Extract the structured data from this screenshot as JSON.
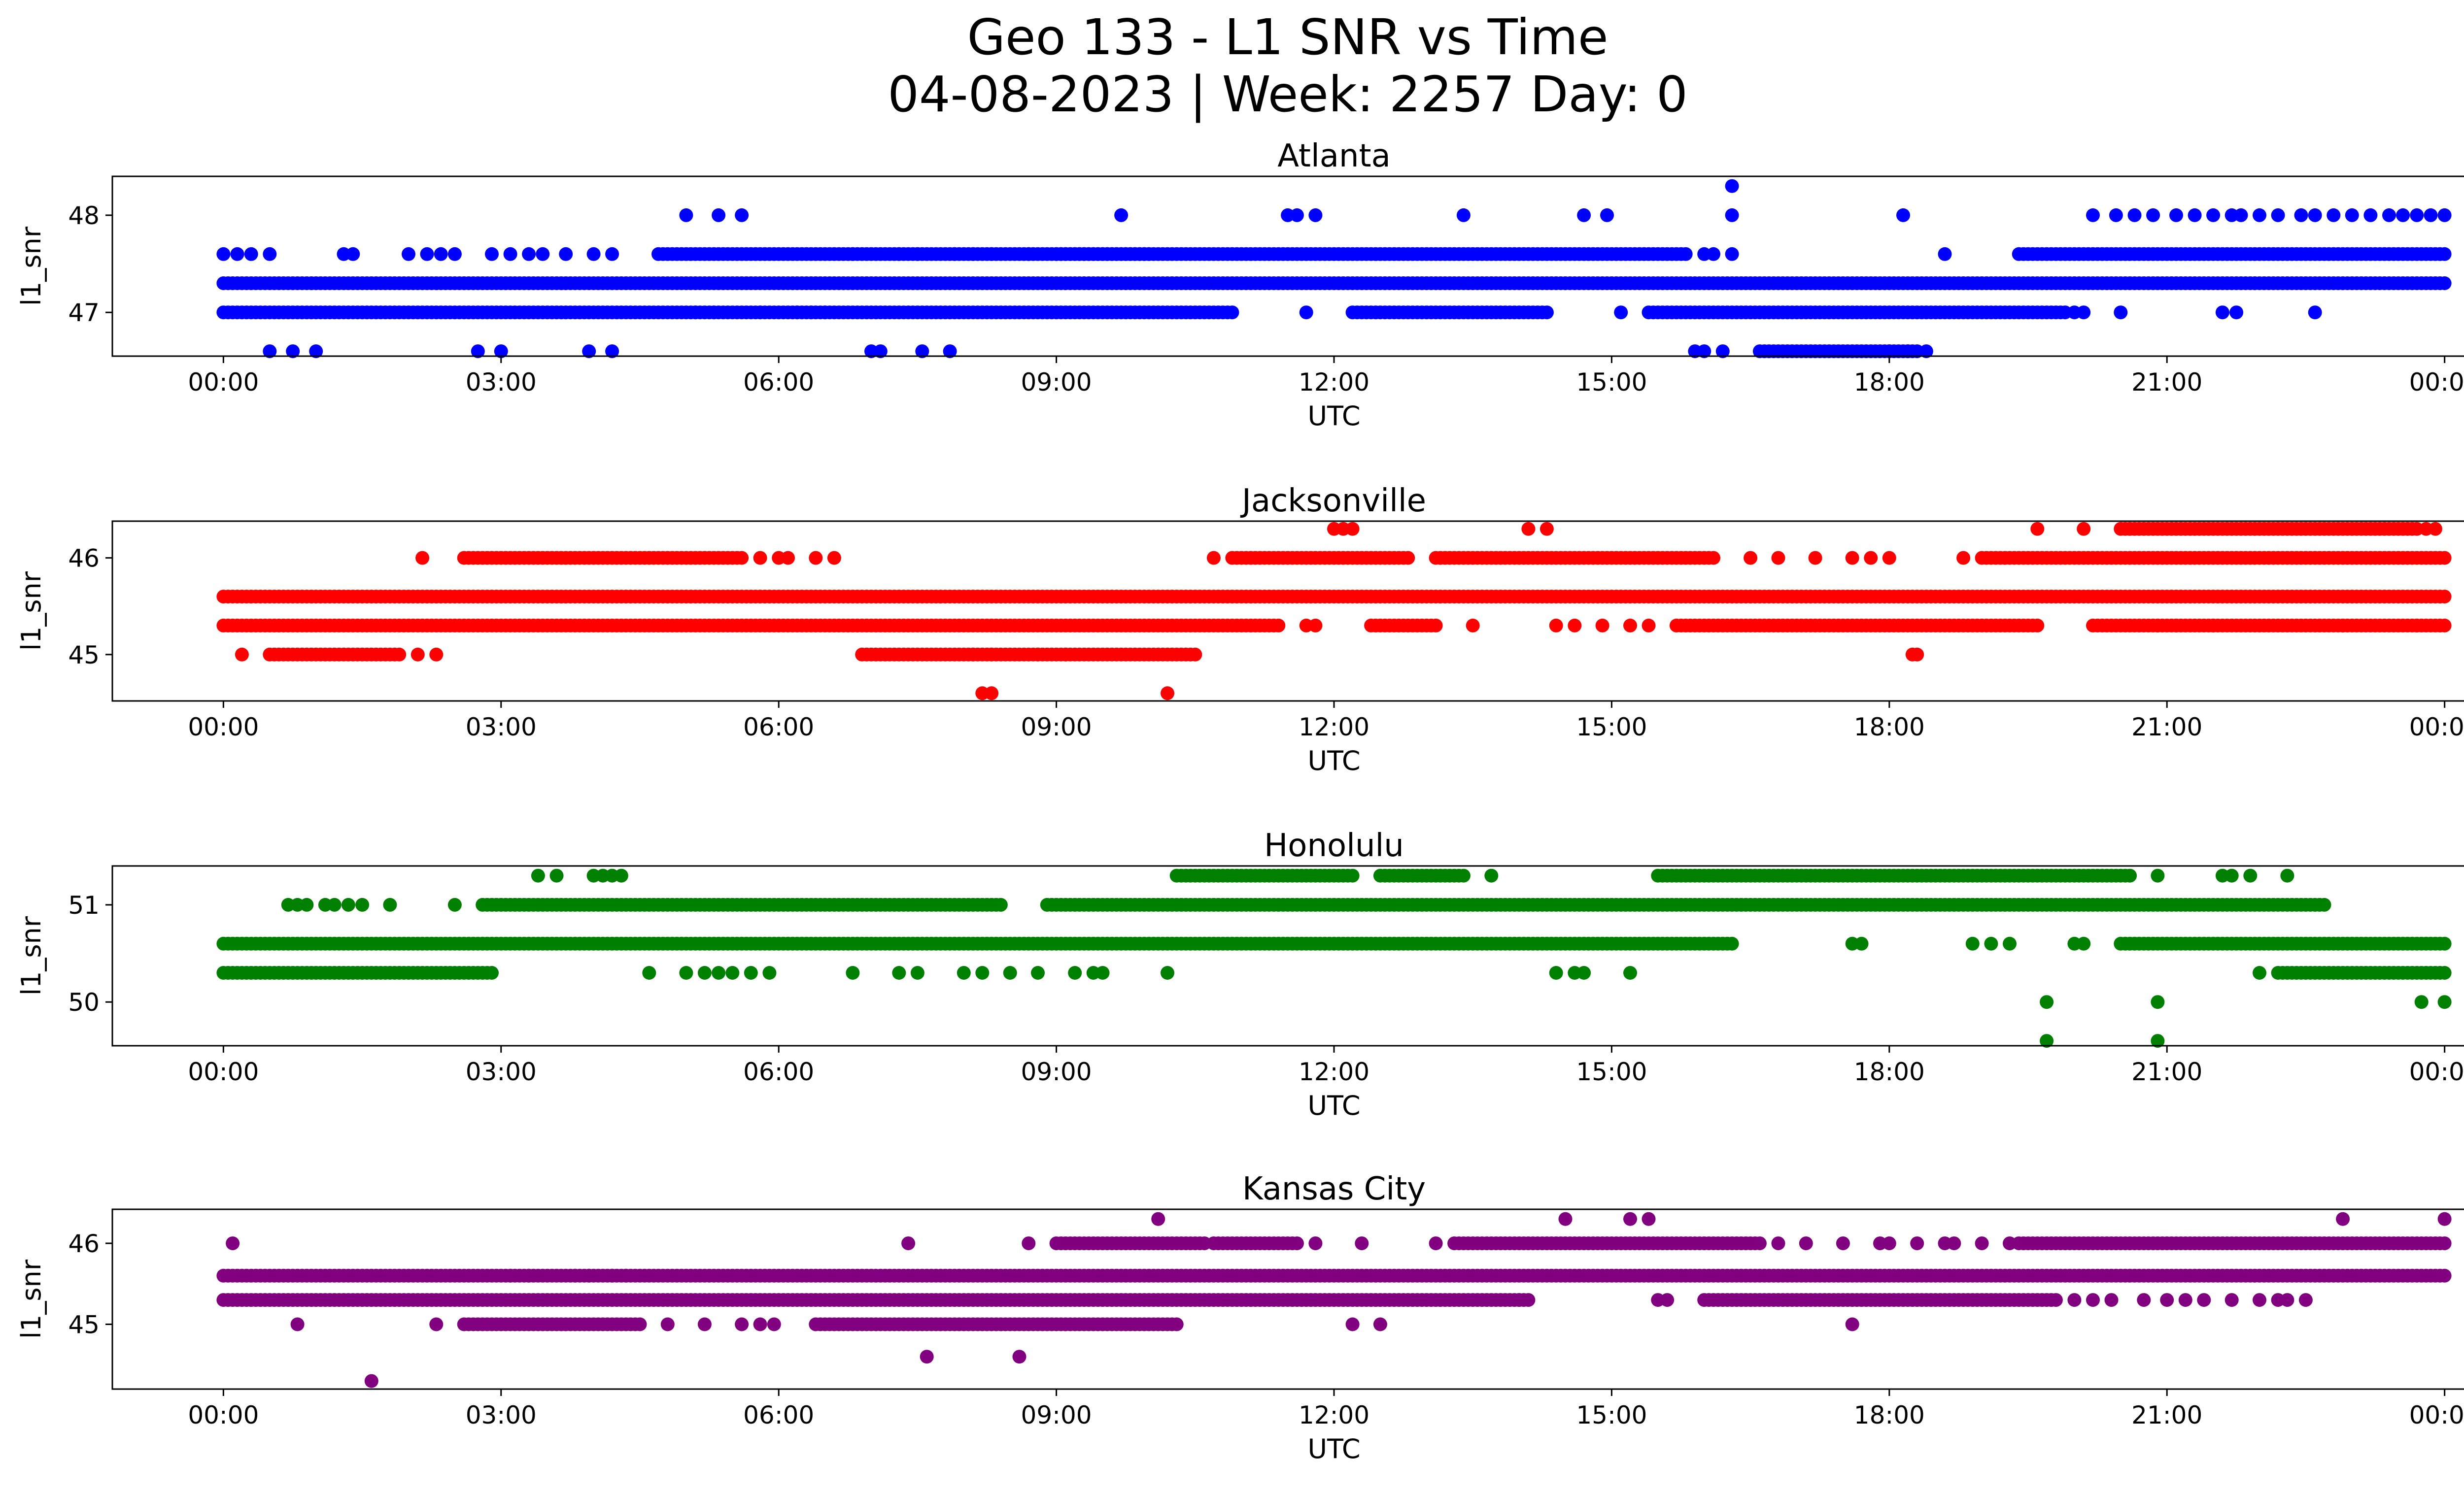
{
  "figure": {
    "title_line1": "Geo 133 - L1 SNR vs Time",
    "title_line2": "04-08-2023 | Week: 2257 Day: 0"
  },
  "chart_data": [
    {
      "type": "scatter",
      "title": "Atlanta",
      "xlabel": "UTC",
      "ylabel": "l1_snr",
      "color": "#0000ff",
      "x_ticks": [
        "00:00",
        "03:00",
        "06:00",
        "09:00",
        "12:00",
        "15:00",
        "18:00",
        "21:00",
        "00:00"
      ],
      "y_ticks": [
        47,
        48
      ],
      "xlim": [
        -1.2,
        25.2
      ],
      "ylim": [
        46.55,
        48.4
      ],
      "series": [
        {
          "x_range": [
            0,
            24
          ],
          "y": 47.3
        },
        {
          "x_range": [
            0,
            10.9
          ],
          "y": 47.0
        },
        {
          "x_range": [
            12.2,
            14.3
          ],
          "y": 47.0
        },
        {
          "x_range": [
            15.4,
            19.9
          ],
          "y": 47.0
        },
        {
          "x_range": [
            6.8,
            10.0
          ],
          "y": 47.6
        },
        {
          "x_range": [
            4.7,
            6.8
          ],
          "y": 47.6
        },
        {
          "x_range": [
            9.0,
            15.8
          ],
          "y": 47.6
        },
        {
          "x_range": [
            19.4,
            24
          ],
          "y": 47.6
        },
        {
          "x_range": [
            16.6,
            18.3
          ],
          "y": 46.6
        }
      ],
      "points": [
        [
          0.0,
          47.6
        ],
        [
          0.15,
          47.6
        ],
        [
          0.3,
          47.6
        ],
        [
          0.5,
          47.6
        ],
        [
          1.3,
          47.6
        ],
        [
          1.4,
          47.6
        ],
        [
          2.0,
          47.6
        ],
        [
          2.2,
          47.6
        ],
        [
          2.35,
          47.6
        ],
        [
          2.5,
          47.6
        ],
        [
          2.9,
          47.6
        ],
        [
          3.1,
          47.6
        ],
        [
          3.3,
          47.6
        ],
        [
          3.45,
          47.6
        ],
        [
          3.7,
          47.6
        ],
        [
          4.0,
          47.6
        ],
        [
          4.2,
          47.6
        ],
        [
          7.3,
          47.6
        ],
        [
          7.5,
          47.6
        ],
        [
          7.9,
          47.6
        ],
        [
          8.1,
          47.6
        ],
        [
          8.3,
          47.6
        ],
        [
          8.7,
          47.6
        ],
        [
          16.0,
          47.6
        ],
        [
          16.1,
          47.6
        ],
        [
          16.3,
          47.6
        ],
        [
          18.6,
          47.6
        ],
        [
          5.0,
          48.0
        ],
        [
          5.35,
          48.0
        ],
        [
          5.6,
          48.0
        ],
        [
          9.7,
          48.0
        ],
        [
          11.5,
          48.0
        ],
        [
          11.6,
          48.0
        ],
        [
          11.8,
          48.0
        ],
        [
          13.4,
          48.0
        ],
        [
          14.7,
          48.0
        ],
        [
          14.95,
          48.0
        ],
        [
          16.3,
          48.0
        ],
        [
          18.15,
          48.0
        ],
        [
          20.2,
          48.0
        ],
        [
          20.45,
          48.0
        ],
        [
          20.65,
          48.0
        ],
        [
          20.85,
          48.0
        ],
        [
          21.1,
          48.0
        ],
        [
          21.3,
          48.0
        ],
        [
          21.5,
          48.0
        ],
        [
          21.7,
          48.0
        ],
        [
          21.8,
          48.0
        ],
        [
          22.0,
          48.0
        ],
        [
          22.2,
          48.0
        ],
        [
          22.45,
          48.0
        ],
        [
          22.6,
          48.0
        ],
        [
          22.8,
          48.0
        ],
        [
          23.0,
          48.0
        ],
        [
          23.2,
          48.0
        ],
        [
          23.4,
          48.0
        ],
        [
          23.55,
          48.0
        ],
        [
          23.7,
          48.0
        ],
        [
          23.85,
          48.0
        ],
        [
          24.0,
          48.0
        ],
        [
          16.3,
          48.3
        ],
        [
          5.1,
          47.0
        ],
        [
          5.3,
          47.0
        ],
        [
          5.8,
          47.0
        ],
        [
          6.2,
          47.0
        ],
        [
          6.35,
          47.0
        ],
        [
          6.5,
          47.0
        ],
        [
          11.7,
          47.0
        ],
        [
          15.1,
          47.0
        ],
        [
          20.0,
          47.0
        ],
        [
          20.1,
          47.0
        ],
        [
          20.5,
          47.0
        ],
        [
          21.6,
          47.0
        ],
        [
          21.75,
          47.0
        ],
        [
          22.6,
          47.0
        ],
        [
          0.5,
          46.6
        ],
        [
          0.75,
          46.6
        ],
        [
          1.0,
          46.6
        ],
        [
          2.75,
          46.6
        ],
        [
          3.0,
          46.6
        ],
        [
          3.95,
          46.6
        ],
        [
          4.2,
          46.6
        ],
        [
          7.0,
          46.6
        ],
        [
          7.1,
          46.6
        ],
        [
          7.55,
          46.6
        ],
        [
          7.85,
          46.6
        ],
        [
          15.9,
          46.6
        ],
        [
          16.0,
          46.6
        ],
        [
          16.2,
          46.6
        ],
        [
          18.0,
          46.6
        ],
        [
          18.2,
          46.6
        ],
        [
          18.4,
          46.6
        ]
      ]
    },
    {
      "type": "scatter",
      "title": "Jacksonville",
      "xlabel": "UTC",
      "ylabel": "l1_snr",
      "color": "#ff0000",
      "x_ticks": [
        "00:00",
        "03:00",
        "06:00",
        "09:00",
        "12:00",
        "15:00",
        "18:00",
        "21:00",
        "00:00"
      ],
      "y_ticks": [
        45,
        46
      ],
      "xlim": [
        -1.2,
        25.2
      ],
      "ylim": [
        44.52,
        46.38
      ],
      "series": [
        {
          "x_range": [
            0,
            24
          ],
          "y": 45.6
        },
        {
          "x_range": [
            0,
            11.4
          ],
          "y": 45.3
        },
        {
          "x_range": [
            12.4,
            13.1
          ],
          "y": 45.3
        },
        {
          "x_range": [
            15.7,
            19.6
          ],
          "y": 45.3
        },
        {
          "x_range": [
            20.2,
            24
          ],
          "y": 45.3
        },
        {
          "x_range": [
            0.5,
            1.9
          ],
          "y": 45.0
        },
        {
          "x_range": [
            6.9,
            10.5
          ],
          "y": 45.0
        },
        {
          "x_range": [
            2.6,
            5.6
          ],
          "y": 46.0
        },
        {
          "x_range": [
            10.9,
            12.8
          ],
          "y": 46.0
        },
        {
          "x_range": [
            13.1,
            16.1
          ],
          "y": 46.0
        },
        {
          "x_range": [
            19.0,
            24
          ],
          "y": 46.0
        },
        {
          "x_range": [
            20.5,
            23.7
          ],
          "y": 46.3
        }
      ],
      "points": [
        [
          0.2,
          45.0
        ],
        [
          2.1,
          45.0
        ],
        [
          2.3,
          45.0
        ],
        [
          8.1,
          45.0
        ],
        [
          8.3,
          45.0
        ],
        [
          8.8,
          45.0
        ],
        [
          9.1,
          45.0
        ],
        [
          18.3,
          45.0
        ],
        [
          18.25,
          45.0
        ],
        [
          8.2,
          44.6
        ],
        [
          8.3,
          44.6
        ],
        [
          10.2,
          44.6
        ],
        [
          2.15,
          46.0
        ],
        [
          5.8,
          46.0
        ],
        [
          6.0,
          46.0
        ],
        [
          6.1,
          46.0
        ],
        [
          6.4,
          46.0
        ],
        [
          6.6,
          46.0
        ],
        [
          10.7,
          46.0
        ],
        [
          16.5,
          46.0
        ],
        [
          16.8,
          46.0
        ],
        [
          17.2,
          46.0
        ],
        [
          17.6,
          46.0
        ],
        [
          17.8,
          46.0
        ],
        [
          18.0,
          46.0
        ],
        [
          18.8,
          46.0
        ],
        [
          12.0,
          46.3
        ],
        [
          12.1,
          46.3
        ],
        [
          12.2,
          46.3
        ],
        [
          14.1,
          46.3
        ],
        [
          14.3,
          46.3
        ],
        [
          19.6,
          46.3
        ],
        [
          20.1,
          46.3
        ],
        [
          23.8,
          46.3
        ],
        [
          23.9,
          46.3
        ],
        [
          11.7,
          45.3
        ],
        [
          11.8,
          45.3
        ],
        [
          13.5,
          45.3
        ],
        [
          14.4,
          45.3
        ],
        [
          14.6,
          45.3
        ],
        [
          14.9,
          45.3
        ],
        [
          15.2,
          45.3
        ],
        [
          15.4,
          45.3
        ],
        [
          20.9,
          45.3
        ],
        [
          21.1,
          45.3
        ],
        [
          21.5,
          45.3
        ],
        [
          22.9,
          45.3
        ],
        [
          23.7,
          45.3
        ]
      ]
    },
    {
      "type": "scatter",
      "title": "Honolulu",
      "xlabel": "UTC",
      "ylabel": "l1_snr",
      "color": "#008000",
      "x_ticks": [
        "00:00",
        "03:00",
        "06:00",
        "09:00",
        "12:00",
        "15:00",
        "18:00",
        "21:00",
        "00:00"
      ],
      "y_ticks": [
        50,
        51
      ],
      "xlim": [
        -1.2,
        25.2
      ],
      "ylim": [
        49.55,
        51.4
      ],
      "series": [
        {
          "x_range": [
            0,
            16.3
          ],
          "y": 50.6
        },
        {
          "x_range": [
            20.5,
            24
          ],
          "y": 50.6
        },
        {
          "x_range": [
            0,
            2.9
          ],
          "y": 50.3
        },
        {
          "x_range": [
            22.2,
            24
          ],
          "y": 50.3
        },
        {
          "x_range": [
            2.8,
            8.4
          ],
          "y": 51.0
        },
        {
          "x_range": [
            8.9,
            22.7
          ],
          "y": 51.0
        },
        {
          "x_range": [
            10.3,
            12.2
          ],
          "y": 51.3
        },
        {
          "x_range": [
            12.5,
            13.4
          ],
          "y": 51.3
        },
        {
          "x_range": [
            15.5,
            20.6
          ],
          "y": 51.3
        }
      ],
      "points": [
        [
          0.7,
          51.0
        ],
        [
          0.8,
          51.0
        ],
        [
          0.9,
          51.0
        ],
        [
          1.1,
          51.0
        ],
        [
          1.2,
          51.0
        ],
        [
          1.35,
          51.0
        ],
        [
          1.5,
          51.0
        ],
        [
          1.8,
          51.0
        ],
        [
          2.5,
          51.0
        ],
        [
          3.4,
          51.3
        ],
        [
          3.6,
          51.3
        ],
        [
          4.0,
          51.3
        ],
        [
          4.1,
          51.3
        ],
        [
          4.2,
          51.3
        ],
        [
          4.3,
          51.3
        ],
        [
          13.7,
          51.3
        ],
        [
          20.9,
          51.3
        ],
        [
          21.6,
          51.3
        ],
        [
          21.7,
          51.3
        ],
        [
          21.9,
          51.3
        ],
        [
          22.3,
          51.3
        ],
        [
          4.6,
          50.3
        ],
        [
          5.0,
          50.3
        ],
        [
          5.2,
          50.3
        ],
        [
          5.35,
          50.3
        ],
        [
          5.5,
          50.3
        ],
        [
          5.7,
          50.3
        ],
        [
          5.9,
          50.3
        ],
        [
          6.8,
          50.3
        ],
        [
          7.3,
          50.3
        ],
        [
          7.5,
          50.3
        ],
        [
          8.0,
          50.3
        ],
        [
          8.2,
          50.3
        ],
        [
          8.5,
          50.3
        ],
        [
          8.8,
          50.3
        ],
        [
          9.2,
          50.3
        ],
        [
          9.4,
          50.3
        ],
        [
          9.5,
          50.3
        ],
        [
          10.2,
          50.3
        ],
        [
          14.4,
          50.3
        ],
        [
          14.6,
          50.3
        ],
        [
          14.7,
          50.3
        ],
        [
          15.2,
          50.3
        ],
        [
          22.0,
          50.3
        ],
        [
          17.6,
          50.6
        ],
        [
          17.7,
          50.6
        ],
        [
          18.9,
          50.6
        ],
        [
          19.1,
          50.6
        ],
        [
          19.3,
          50.6
        ],
        [
          20.0,
          50.6
        ],
        [
          20.1,
          50.6
        ],
        [
          19.7,
          50.0
        ],
        [
          20.9,
          50.0
        ],
        [
          23.75,
          50.0
        ],
        [
          24.0,
          50.0
        ],
        [
          19.7,
          49.6
        ],
        [
          20.9,
          49.6
        ]
      ]
    },
    {
      "type": "scatter",
      "title": "Kansas City",
      "xlabel": "UTC",
      "ylabel": "l1_snr",
      "color": "#800080",
      "x_ticks": [
        "00:00",
        "03:00",
        "06:00",
        "09:00",
        "12:00",
        "15:00",
        "18:00",
        "21:00",
        "00:00"
      ],
      "y_ticks": [
        45,
        46
      ],
      "xlim": [
        -1.2,
        25.2
      ],
      "ylim": [
        44.2,
        46.42
      ],
      "series": [
        {
          "x_range": [
            0,
            24
          ],
          "y": 45.6
        },
        {
          "x_range": [
            0,
            14.1
          ],
          "y": 45.3
        },
        {
          "x_range": [
            16.0,
            19.8
          ],
          "y": 45.3
        },
        {
          "x_range": [
            2.6,
            4.5
          ],
          "y": 45.0
        },
        {
          "x_range": [
            6.4,
            10.3
          ],
          "y": 45.0
        },
        {
          "x_range": [
            9.0,
            10.6
          ],
          "y": 46.0
        },
        {
          "x_range": [
            10.7,
            11.6
          ],
          "y": 46.0
        },
        {
          "x_range": [
            13.3,
            16.6
          ],
          "y": 46.0
        },
        {
          "x_range": [
            19.4,
            24
          ],
          "y": 46.0
        }
      ],
      "points": [
        [
          0.1,
          46.0
        ],
        [
          7.4,
          46.0
        ],
        [
          8.7,
          46.0
        ],
        [
          11.8,
          46.0
        ],
        [
          12.3,
          46.0
        ],
        [
          13.1,
          46.0
        ],
        [
          16.8,
          46.0
        ],
        [
          17.1,
          46.0
        ],
        [
          17.5,
          46.0
        ],
        [
          17.9,
          46.0
        ],
        [
          18.0,
          46.0
        ],
        [
          18.3,
          46.0
        ],
        [
          18.6,
          46.0
        ],
        [
          18.7,
          46.0
        ],
        [
          19.0,
          46.0
        ],
        [
          19.3,
          46.0
        ],
        [
          10.1,
          46.3
        ],
        [
          14.5,
          46.3
        ],
        [
          15.2,
          46.3
        ],
        [
          15.4,
          46.3
        ],
        [
          22.9,
          46.3
        ],
        [
          24.0,
          46.3
        ],
        [
          0.8,
          45.0
        ],
        [
          2.3,
          45.0
        ],
        [
          4.8,
          45.0
        ],
        [
          5.2,
          45.0
        ],
        [
          5.6,
          45.0
        ],
        [
          5.8,
          45.0
        ],
        [
          5.95,
          45.0
        ],
        [
          12.2,
          45.0
        ],
        [
          12.5,
          45.0
        ],
        [
          17.6,
          45.0
        ],
        [
          7.6,
          44.6
        ],
        [
          8.6,
          44.6
        ],
        [
          1.6,
          44.3
        ],
        [
          3.1,
          45.6
        ],
        [
          3.3,
          45.6
        ],
        [
          3.8,
          45.6
        ],
        [
          3.95,
          45.6
        ],
        [
          4.2,
          45.6
        ],
        [
          4.35,
          45.6
        ],
        [
          14.0,
          45.3
        ],
        [
          15.5,
          45.3
        ],
        [
          15.6,
          45.3
        ],
        [
          20.0,
          45.3
        ],
        [
          20.2,
          45.3
        ],
        [
          20.4,
          45.3
        ],
        [
          20.75,
          45.3
        ],
        [
          21.0,
          45.3
        ],
        [
          21.2,
          45.3
        ],
        [
          21.4,
          45.3
        ],
        [
          21.7,
          45.3
        ],
        [
          22.0,
          45.3
        ],
        [
          22.2,
          45.3
        ],
        [
          22.3,
          45.3
        ],
        [
          22.5,
          45.3
        ]
      ]
    }
  ]
}
